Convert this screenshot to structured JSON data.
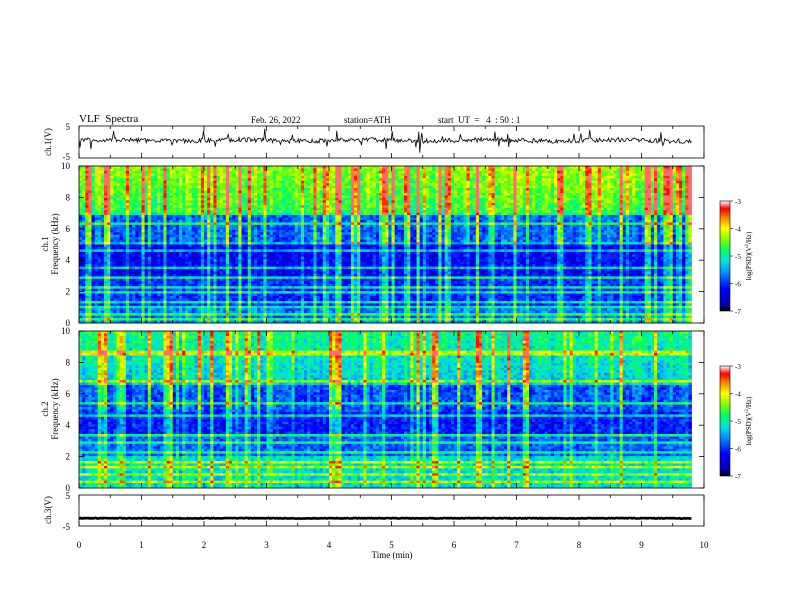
{
  "header": {
    "title": "VLF  Spectra",
    "date": "Feb. 26, 2022",
    "station": "station=ATH",
    "start_ut": "start  UT  =   4  : 50 : 1"
  },
  "colors": {
    "waveform": "#000000",
    "colormap": [
      "#000000",
      "#0000b0",
      "#0000ff",
      "#0090ff",
      "#00e0e0",
      "#00ff60",
      "#80ff00",
      "#ffff00",
      "#ff8000",
      "#ff0000",
      "#ffffff"
    ]
  },
  "chart_data": [
    {
      "type": "line",
      "panel": "ch1-waveform",
      "ylabel": "ch.1(V)",
      "ylim": [
        -5,
        5
      ],
      "y_ticks": [
        "5",
        "-5"
      ],
      "xlim": [
        0,
        10
      ],
      "baseline_v": 0.5,
      "noise_amplitude_v": 0.7
    },
    {
      "type": "heatmap",
      "panel": "ch1-spectrogram",
      "ylabel": "ch.1\nFrequency  (kHz)",
      "ylim": [
        0,
        10
      ],
      "y_ticks": [
        "0",
        "2",
        "4",
        "6",
        "8",
        "10"
      ],
      "xlim": [
        0,
        10
      ],
      "data_x_end_min": 9.8,
      "colorbar": {
        "label": "log(PSD)(V²/Hz)",
        "range": [
          -7,
          -3
        ],
        "ticks": [
          "-3",
          "-4",
          "-5",
          "-6",
          "-7"
        ]
      }
    },
    {
      "type": "heatmap",
      "panel": "ch2-spectrogram",
      "ylabel": "ch.2\nFrequency  (kHz)",
      "ylim": [
        0,
        10
      ],
      "y_ticks": [
        "0",
        "2",
        "4",
        "6",
        "8",
        "10"
      ],
      "xlim": [
        0,
        10
      ],
      "data_x_end_min": 9.8,
      "colorbar": {
        "label": "log(PSD)(V²/Hz)",
        "range": [
          -7,
          -3
        ],
        "ticks": [
          "-3",
          "-4",
          "-5",
          "-6",
          "-7"
        ]
      }
    },
    {
      "type": "line",
      "panel": "ch3-waveform",
      "ylabel": "ch.3(V)",
      "ylim": [
        -5,
        5
      ],
      "y_ticks": [
        "5",
        "-5"
      ],
      "xlim": [
        0,
        10
      ],
      "baseline_v": -2.5,
      "noise_amplitude_v": 0.1,
      "xlabel": "Time  (min)",
      "x_ticks": [
        "0",
        "1",
        "2",
        "3",
        "4",
        "5",
        "6",
        "7",
        "8",
        "9",
        "10"
      ]
    }
  ]
}
